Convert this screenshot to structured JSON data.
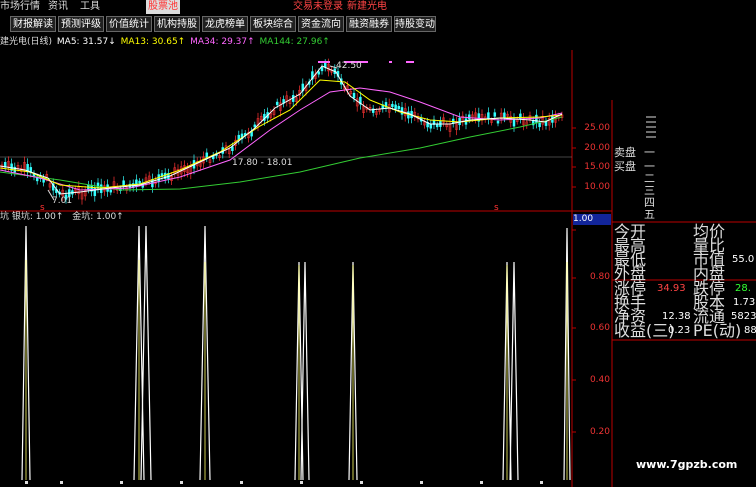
{
  "menu": {
    "market": "市场行情",
    "news": "资讯",
    "tools": "工具",
    "pool": "股票池",
    "trade_login": "交易未登录",
    "stock_name": "新建光电"
  },
  "tabs": [
    "财报解读",
    "预测评级",
    "价值统计",
    "机构持股",
    "龙虎榜单",
    "板块综合",
    "资金流向",
    "融资融券",
    "持股变动"
  ],
  "legend": {
    "title": "建光电(日线)",
    "ma5": "MA5: 31.57↓",
    "ma13": "MA13: 30.65↑",
    "ma34": "MA34: 29.37↑",
    "ma144": "MA144: 27.96↑"
  },
  "chart": {
    "high_label": "42.50",
    "low_label": "7.01",
    "range_label": "17.80 - 18.01",
    "price_axis": [
      "25.00",
      "20.00",
      "15.00",
      "10.00"
    ],
    "sell_label": "卖盘",
    "buy_label": "买盘",
    "sell_levels": [
      "三",
      "二",
      "一"
    ],
    "buy_levels": [
      "一",
      "二",
      "三",
      "四",
      "五"
    ],
    "marker_s": "s"
  },
  "indicator": {
    "title": "坑",
    "silver": "银坑: 1.00↑",
    "gold": "金坑: 1.00↑",
    "axis": [
      "1.00",
      "0.80",
      "0.60",
      "0.40",
      "0.20"
    ],
    "selected": "1.00"
  },
  "colors": {
    "ma5": "#ffffff",
    "ma13": "#ffff00",
    "ma34": "#ff66ff",
    "ma144": "#33cc33",
    "up": "#ff3333",
    "down": "#33ffff"
  },
  "quote": {
    "jinkai": "今开",
    "junjia": "均价",
    "zuigao": "最高",
    "liangbi": "量比",
    "zuidi": "最低",
    "shizhi": "市值",
    "shizhi_v": "55.0",
    "waipan": "外盘",
    "neipan": "内盘",
    "zhangting": "涨停",
    "zhangting_v": "34.93",
    "dieting": "跌停",
    "dieting_v": "28.",
    "huanshou": "换手",
    "guben": "股本",
    "guben_v": "1.73",
    "jingzi": "净资",
    "jingzi_v": "12.38",
    "liutong": "流通",
    "liutong_v": "5823",
    "shouyi": "收益(三)",
    "shouyi_v": "0.23",
    "pe": "PE(动)",
    "pe_v": "88"
  },
  "watermark": "www.7gpzb.com"
}
